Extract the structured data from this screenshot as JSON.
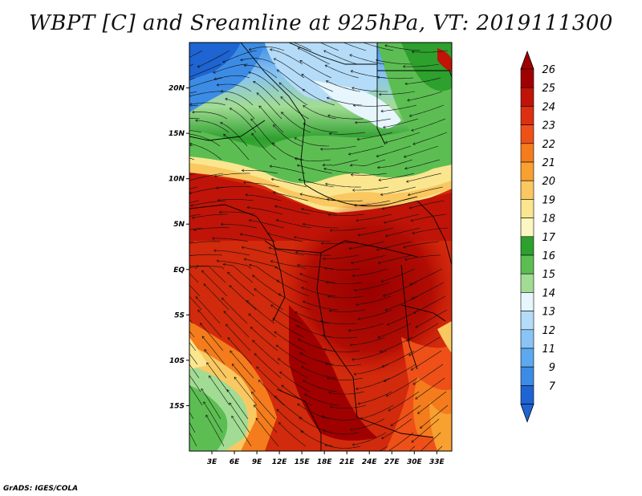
{
  "title": "WBPT [C] and Sreamline at 925hPa, VT: 2019111300",
  "credit": "GrADS: IGES/COLA",
  "map": {
    "lon_range": [
      0,
      35
    ],
    "lat_range": [
      -20,
      25
    ],
    "x_ticks": [
      {
        "value": 3,
        "label": "3E"
      },
      {
        "value": 6,
        "label": "6E"
      },
      {
        "value": 9,
        "label": "9E"
      },
      {
        "value": 12,
        "label": "12E"
      },
      {
        "value": 15,
        "label": "15E"
      },
      {
        "value": 18,
        "label": "18E"
      },
      {
        "value": 21,
        "label": "21E"
      },
      {
        "value": 24,
        "label": "24E"
      },
      {
        "value": 27,
        "label": "27E"
      },
      {
        "value": 30,
        "label": "30E"
      },
      {
        "value": 33,
        "label": "33E"
      }
    ],
    "y_ticks": [
      {
        "value": 20,
        "label": "20N"
      },
      {
        "value": 15,
        "label": "15N"
      },
      {
        "value": 10,
        "label": "10N"
      },
      {
        "value": 5,
        "label": "5N"
      },
      {
        "value": 0,
        "label": "EQ"
      },
      {
        "value": -5,
        "label": "5S"
      },
      {
        "value": -10,
        "label": "10S"
      },
      {
        "value": -15,
        "label": "15S"
      }
    ]
  },
  "colorbar": {
    "levels": [
      {
        "label": "26",
        "color": "#a00000"
      },
      {
        "label": "25",
        "color": "#c01408"
      },
      {
        "label": "24",
        "color": "#dc3010"
      },
      {
        "label": "23",
        "color": "#ee5018"
      },
      {
        "label": "22",
        "color": "#f47c1c"
      },
      {
        "label": "21",
        "color": "#f8a030"
      },
      {
        "label": "20",
        "color": "#fac860"
      },
      {
        "label": "19",
        "color": "#fae68e"
      },
      {
        "label": "18",
        "color": "#fcf6c0"
      },
      {
        "label": "17",
        "color": "#2da02d"
      },
      {
        "label": "16",
        "color": "#5cbe52"
      },
      {
        "label": "15",
        "color": "#a2dc94"
      },
      {
        "label": "14",
        "color": "#e6f6fc"
      },
      {
        "label": "13",
        "color": "#b4dcf8"
      },
      {
        "label": "12",
        "color": "#8ac4f4"
      },
      {
        "label": "11",
        "color": "#5ea8ee"
      },
      {
        "label": "9",
        "color": "#3c8ce6"
      },
      {
        "label": "7",
        "color": "#1e64d2"
      }
    ]
  }
}
